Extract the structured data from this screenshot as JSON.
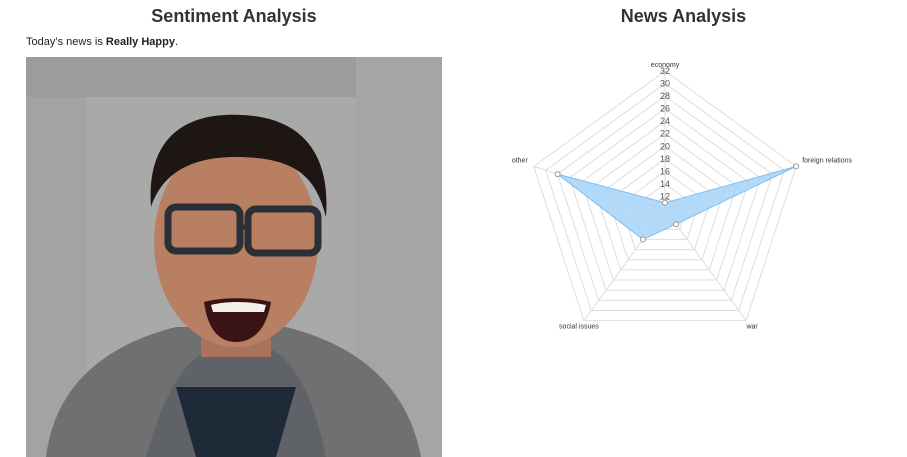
{
  "left_panel": {
    "title": "Sentiment Analysis",
    "sentence_prefix": "Today’s news is ",
    "sentiment": "Really Happy",
    "sentence_suffix": ".",
    "photo_icon": "webcam-photo-of-smiling-person"
  },
  "right_panel": {
    "title": "News Analysis"
  },
  "chart_data": {
    "type": "radar",
    "categories": [
      "economy",
      "foreign relations",
      "war",
      "social issues",
      "other"
    ],
    "series": [
      {
        "values": [
          11,
          32,
          13,
          16,
          28
        ],
        "color": "#a6d4f7",
        "stroke": "#7fbdf0"
      }
    ],
    "rlim": [
      10,
      32
    ],
    "ticks": [
      12,
      14,
      16,
      18,
      20,
      22,
      24,
      26,
      28,
      30,
      32
    ],
    "grid": true,
    "grid_color": "#dddddd"
  }
}
